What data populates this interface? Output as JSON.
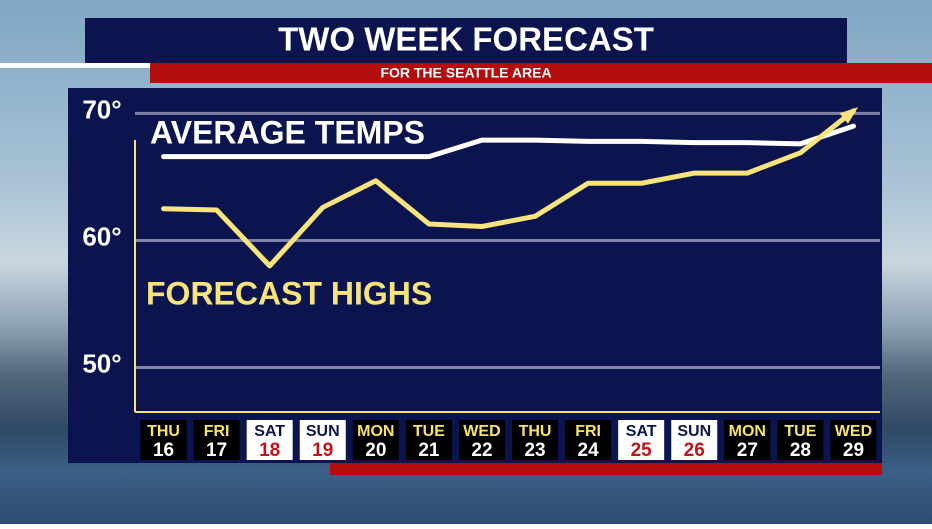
{
  "chart_data": {
    "type": "line",
    "title": "TWO WEEK FORECAST",
    "subtitle": "FOR THE SEATTLE AREA",
    "categories": [
      "THU",
      "FRI",
      "SAT",
      "SUN",
      "MON",
      "TUE",
      "WED",
      "THU",
      "FRI",
      "SAT",
      "SUN",
      "MON",
      "TUE",
      "WED"
    ],
    "dates": [
      "16",
      "17",
      "18",
      "19",
      "20",
      "21",
      "22",
      "23",
      "24",
      "25",
      "26",
      "27",
      "28",
      "29"
    ],
    "weekend_indices": [
      2,
      3,
      9,
      10
    ],
    "series": [
      {
        "name": "AVERAGE TEMPS",
        "color": "#ffffff",
        "values": [
          66.6,
          66.6,
          66.6,
          66.6,
          66.6,
          66.6,
          67.9,
          67.9,
          67.8,
          67.8,
          67.7,
          67.7,
          67.6,
          69.0
        ]
      },
      {
        "name": "FORECAST HIGHS",
        "color": "#f8e47a",
        "values": [
          62.5,
          62.4,
          58.0,
          62.6,
          64.7,
          61.3,
          61.1,
          61.9,
          64.5,
          64.5,
          65.3,
          65.3,
          66.9,
          70.2
        ]
      }
    ],
    "ylim": [
      46.5,
      72
    ],
    "yticks": [
      {
        "value": 50,
        "label": "50°"
      },
      {
        "value": 60,
        "label": "60°"
      },
      {
        "value": 70,
        "label": "70°"
      }
    ],
    "grid": true
  }
}
